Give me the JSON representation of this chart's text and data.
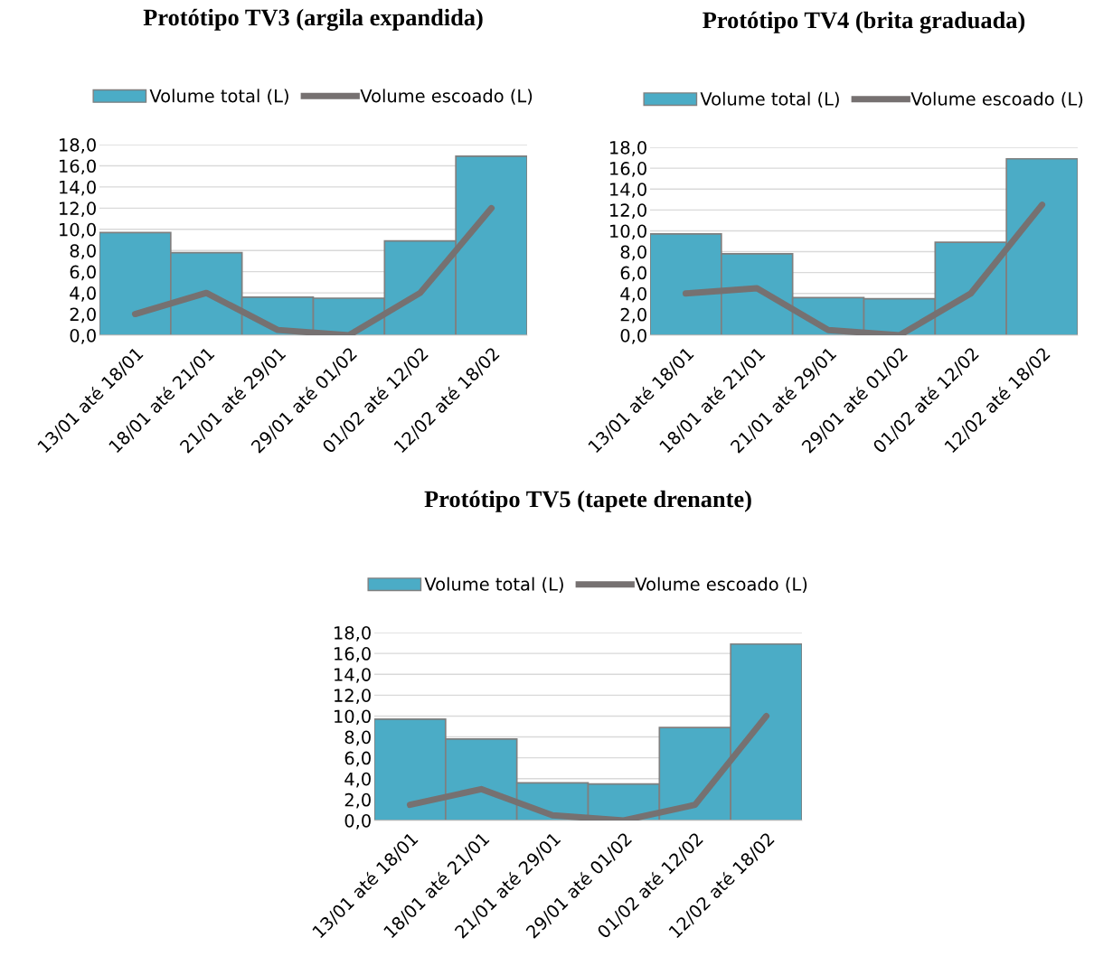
{
  "chart_data": [
    {
      "type": "bar",
      "title": "Protótipo TV3 (argila expandida)",
      "categories": [
        "13/01 até 18/01",
        "18/01 até 21/01",
        "21/01 até 29/01",
        "29/01 até 01/02",
        "01/02 até 12/02",
        "12/02 até 18/02"
      ],
      "series": [
        {
          "name": "Volume total (L)",
          "color": "#4bacc6",
          "values": [
            9.7,
            7.8,
            3.6,
            3.5,
            8.9,
            16.9
          ]
        },
        {
          "name": "Volume escoado (L)",
          "type": "line",
          "color": "#767171",
          "values": [
            2.0,
            4.0,
            0.5,
            0.0,
            4.0,
            12.0
          ]
        }
      ],
      "ylim": [
        0,
        18
      ],
      "yticks": [
        {
          "value": 0,
          "label": "0,0"
        },
        {
          "value": 2,
          "label": "2,0"
        },
        {
          "value": 4,
          "label": "4,0"
        },
        {
          "value": 6,
          "label": "6,0"
        },
        {
          "value": 8,
          "label": "8,0"
        },
        {
          "value": 10,
          "label": "10,0"
        },
        {
          "value": 12,
          "label": "12,0"
        },
        {
          "value": 14,
          "label": "14,0"
        },
        {
          "value": 16,
          "label": "16,0"
        },
        {
          "value": 18,
          "label": "18,0"
        }
      ],
      "grid": "y",
      "legend": "top"
    },
    {
      "type": "bar",
      "title": "Protótipo TV4 (brita graduada)",
      "categories": [
        "13/01 até 18/01",
        "18/01 até 21/01",
        "21/01 até 29/01",
        "29/01 até 01/02",
        "01/02 até 12/02",
        "12/02 até 18/02"
      ],
      "series": [
        {
          "name": "Volume total (L)",
          "color": "#4bacc6",
          "values": [
            9.7,
            7.8,
            3.6,
            3.5,
            8.9,
            16.9
          ]
        },
        {
          "name": "Volume escoado (L)",
          "type": "line",
          "color": "#767171",
          "values": [
            4.0,
            4.5,
            0.5,
            0.0,
            4.0,
            12.5
          ]
        }
      ],
      "ylim": [
        0,
        18
      ],
      "yticks": [
        {
          "value": 0,
          "label": "0,0"
        },
        {
          "value": 2,
          "label": "2,0"
        },
        {
          "value": 4,
          "label": "4,0"
        },
        {
          "value": 6,
          "label": "6,0"
        },
        {
          "value": 8,
          "label": "8,0"
        },
        {
          "value": 10,
          "label": "10,0"
        },
        {
          "value": 12,
          "label": "12,0"
        },
        {
          "value": 14,
          "label": "14,0"
        },
        {
          "value": 16,
          "label": "16,0"
        },
        {
          "value": 18,
          "label": "18,0"
        }
      ],
      "grid": "y",
      "legend": "top"
    },
    {
      "type": "bar",
      "title": "Protótipo TV5 (tapete drenante)",
      "categories": [
        "13/01 até 18/01",
        "18/01 até 21/01",
        "21/01 até 29/01",
        "29/01 até 01/02",
        "01/02 até 12/02",
        "12/02 até 18/02"
      ],
      "series": [
        {
          "name": "Volume total (L)",
          "color": "#4bacc6",
          "values": [
            9.7,
            7.8,
            3.6,
            3.5,
            8.9,
            16.9
          ]
        },
        {
          "name": "Volume escoado (L)",
          "type": "line",
          "color": "#767171",
          "values": [
            1.5,
            3.0,
            0.5,
            0.0,
            1.5,
            10.0
          ]
        }
      ],
      "ylim": [
        0,
        18
      ],
      "yticks": [
        {
          "value": 0,
          "label": "0,0"
        },
        {
          "value": 2,
          "label": "2,0"
        },
        {
          "value": 4,
          "label": "4,0"
        },
        {
          "value": 6,
          "label": "6,0"
        },
        {
          "value": 8,
          "label": "8,0"
        },
        {
          "value": 10,
          "label": "10,0"
        },
        {
          "value": 12,
          "label": "12,0"
        },
        {
          "value": 14,
          "label": "14,0"
        },
        {
          "value": 16,
          "label": "16,0"
        },
        {
          "value": 18,
          "label": "18,0"
        }
      ],
      "grid": "y",
      "legend": "top"
    }
  ]
}
